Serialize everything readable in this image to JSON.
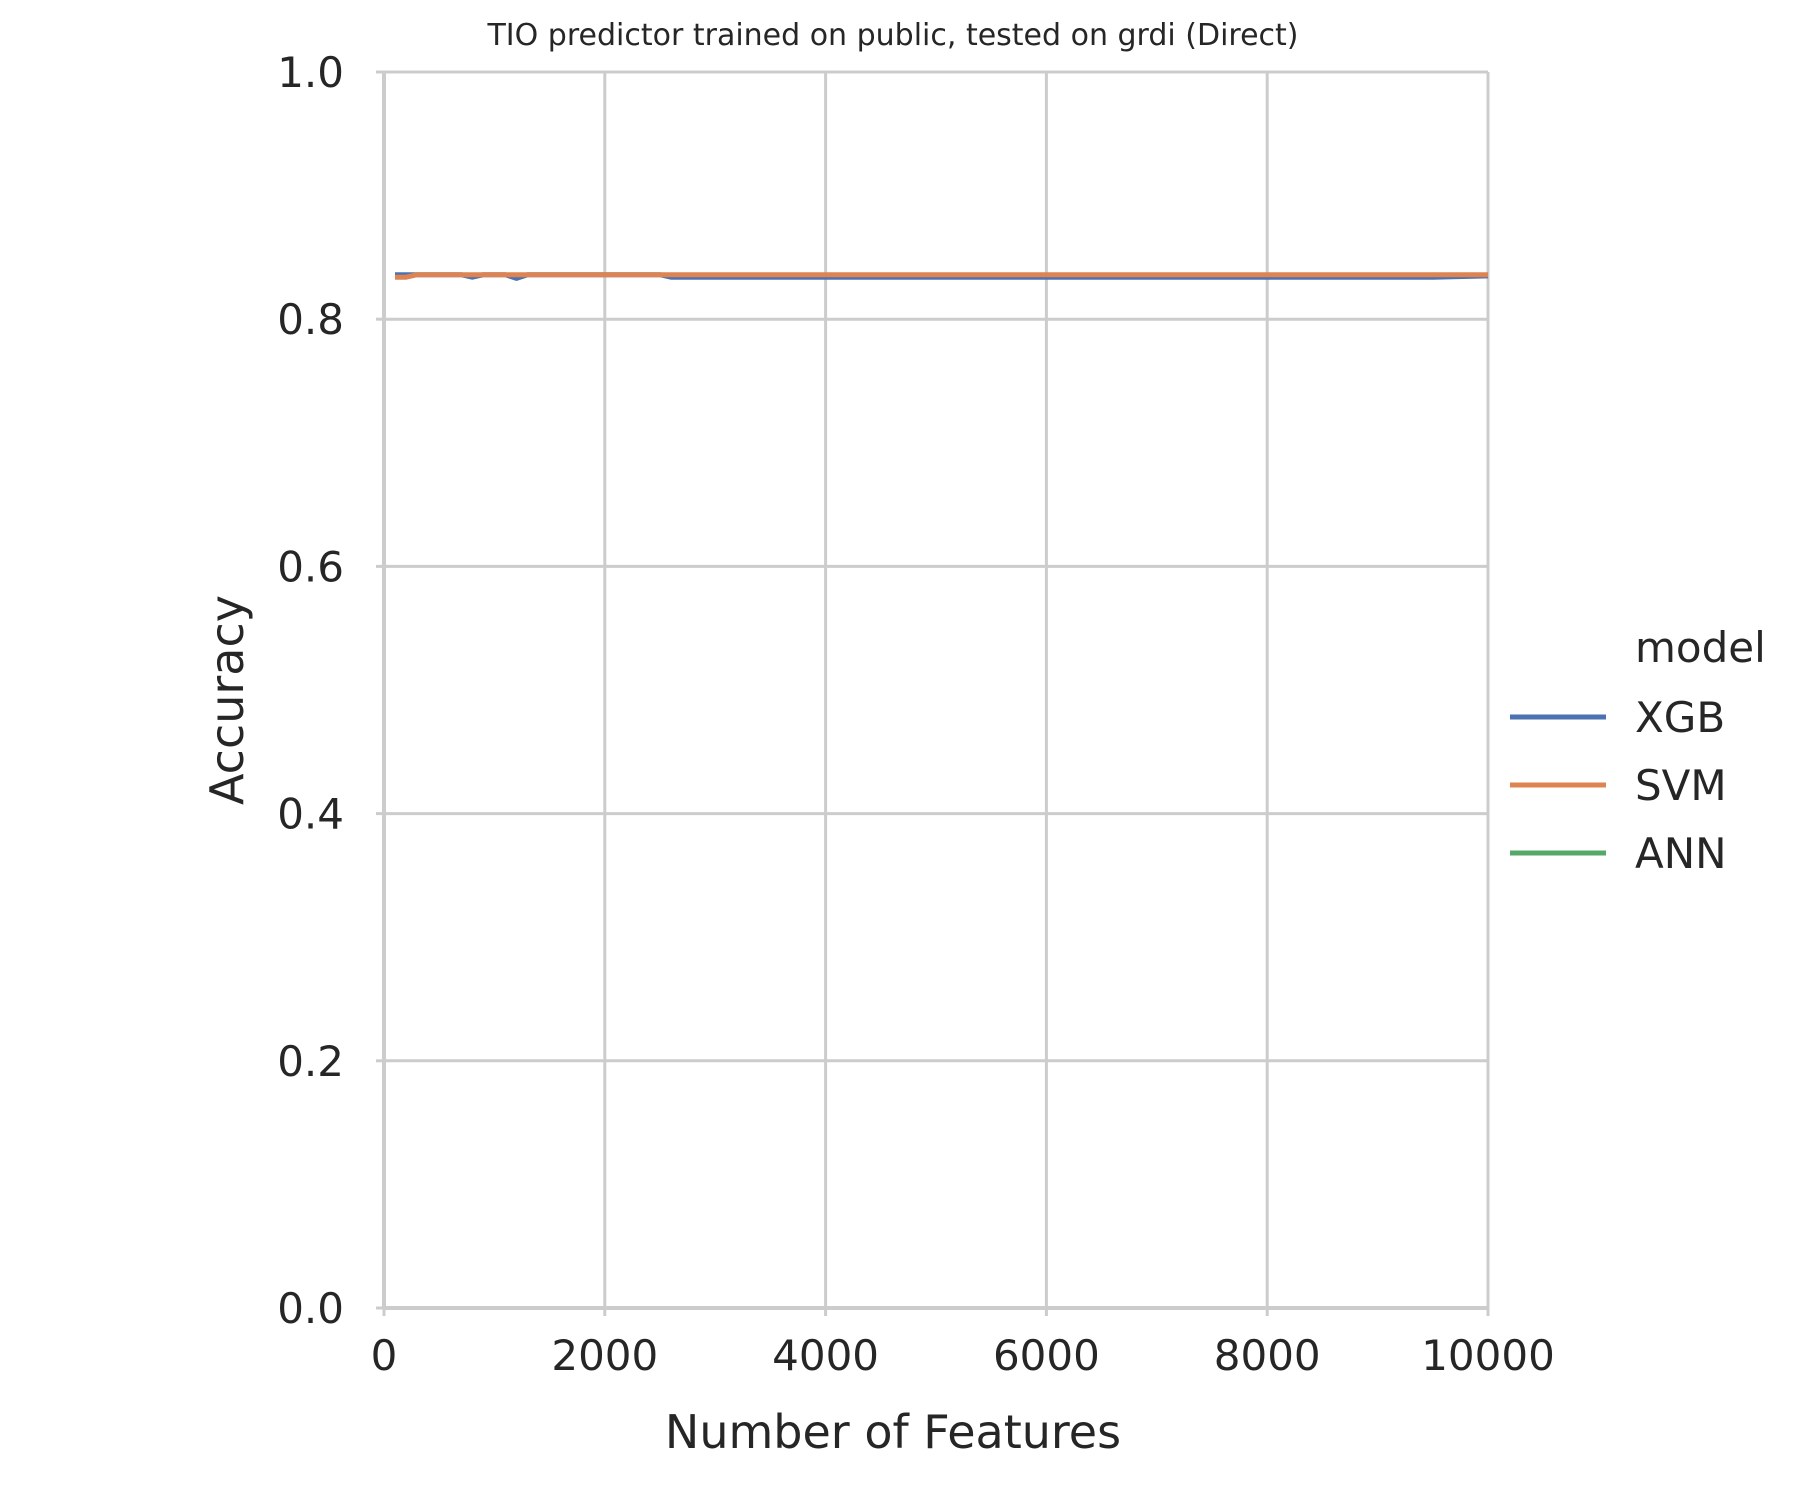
{
  "chart_data": {
    "type": "line",
    "title": "TIO predictor trained on public, tested on grdi (Direct)",
    "xlabel": "Number of Features",
    "ylabel": "Accuracy",
    "xlim": [
      0,
      10000
    ],
    "ylim": [
      0.0,
      1.0
    ],
    "x_ticks": [
      0,
      2000,
      4000,
      6000,
      8000,
      10000
    ],
    "x_tick_labels": [
      "0",
      "2000",
      "4000",
      "6000",
      "8000",
      "10000"
    ],
    "y_ticks": [
      0.0,
      0.2,
      0.4,
      0.6,
      0.8,
      1.0
    ],
    "y_tick_labels": [
      "0.0",
      "0.2",
      "0.4",
      "0.6",
      "0.8",
      "1.0"
    ],
    "grid": true,
    "legend_title": "model",
    "legend_position": "right",
    "series": [
      {
        "name": "XGB",
        "color": "#4c72b0",
        "x": [
          100,
          300,
          500,
          700,
          800,
          900,
          1000,
          1100,
          1200,
          1300,
          1500,
          2000,
          2500,
          2600,
          3000,
          4000,
          5000,
          6000,
          7000,
          8000,
          9000,
          9500,
          10000
        ],
        "y": [
          0.836,
          0.836,
          0.836,
          0.836,
          0.834,
          0.836,
          0.836,
          0.836,
          0.833,
          0.836,
          0.836,
          0.836,
          0.836,
          0.834,
          0.834,
          0.834,
          0.834,
          0.834,
          0.834,
          0.834,
          0.834,
          0.834,
          0.835
        ]
      },
      {
        "name": "SVM",
        "color": "#dd8452",
        "x": [
          100,
          200,
          300,
          500,
          1000,
          1500,
          2000,
          2500,
          3000,
          4000,
          5000,
          6000,
          7000,
          8000,
          9000,
          10000
        ],
        "y": [
          0.834,
          0.834,
          0.836,
          0.836,
          0.836,
          0.836,
          0.836,
          0.836,
          0.836,
          0.836,
          0.836,
          0.836,
          0.836,
          0.836,
          0.836,
          0.836
        ]
      },
      {
        "name": "ANN",
        "color": "#55a868",
        "x": [],
        "y": []
      }
    ]
  }
}
